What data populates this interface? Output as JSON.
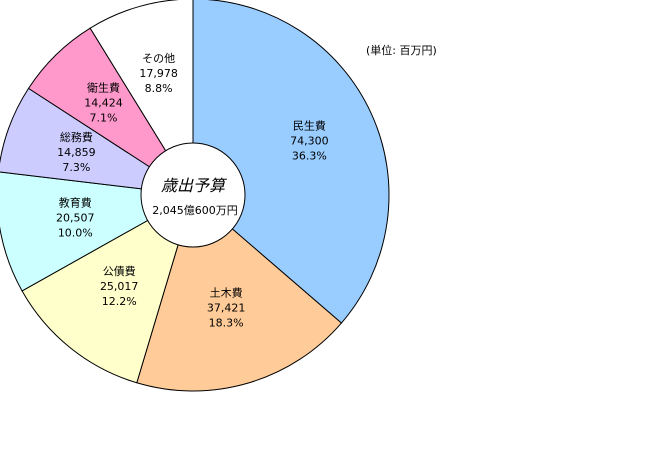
{
  "chart_data": {
    "type": "pie",
    "title": "歳出予算",
    "subtitle": "2,045億600万円",
    "unit_note": "(単位: 百万円)",
    "slices": [
      {
        "label": "民生費",
        "value": 74300,
        "value_text": "74,300",
        "percent": "36.3%",
        "color": "#99ccff"
      },
      {
        "label": "土木費",
        "value": 37421,
        "value_text": "37,421",
        "percent": "18.3%",
        "color": "#ffcc99"
      },
      {
        "label": "公債費",
        "value": 25017,
        "value_text": "25,017",
        "percent": "12.2%",
        "color": "#ffffcc"
      },
      {
        "label": "教育費",
        "value": 20507,
        "value_text": "20,507",
        "percent": "10.0%",
        "color": "#ccffff"
      },
      {
        "label": "総務費",
        "value": 14859,
        "value_text": "14,859",
        "percent": "7.3%",
        "color": "#ccccff"
      },
      {
        "label": "衛生費",
        "value": 14424,
        "value_text": "14,424",
        "percent": "7.1%",
        "color": "#ff99cc"
      },
      {
        "label": "その他",
        "value": 17978,
        "value_text": "17,978",
        "percent": "8.8%",
        "color": "#ffffff"
      }
    ]
  }
}
